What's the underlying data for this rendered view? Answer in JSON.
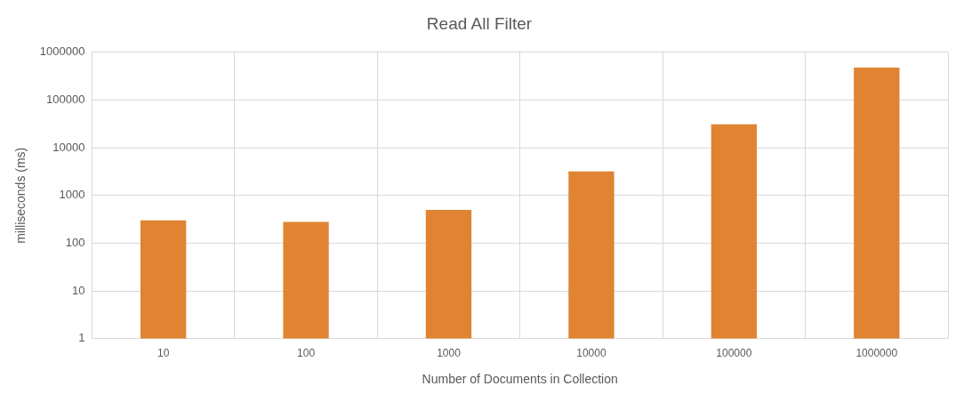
{
  "chart_data": {
    "type": "bar",
    "title": "Read All Filter",
    "xlabel": "Number of Documents in Collection",
    "ylabel": "milliseconds (ms)",
    "categories": [
      "10",
      "100",
      "1000",
      "10000",
      "100000",
      "1000000"
    ],
    "series": [
      {
        "color": "#e08433",
        "values": [
          300,
          280,
          500,
          3200,
          31000,
          480000
        ]
      }
    ],
    "log": "y",
    "ylim": [
      1,
      1000000
    ],
    "yticks": [
      1,
      10,
      100,
      1000,
      10000,
      100000,
      1000000
    ],
    "grid": true
  }
}
